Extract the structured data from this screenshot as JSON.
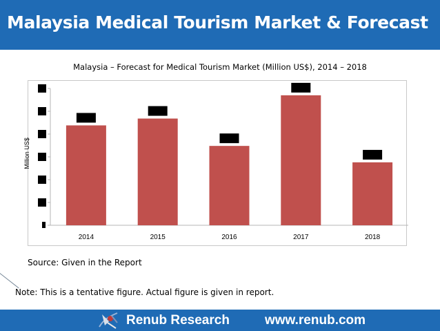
{
  "header": {
    "title": "Malaysia Medical Tourism Market & Forecast"
  },
  "chart_data": {
    "type": "bar",
    "title": "Malaysia – Forecast for Medical Tourism Market (Million US$), 2014 – 2018",
    "xlabel": "",
    "ylabel": "Million US$",
    "categories": [
      "2014",
      "2015",
      "2016",
      "2017",
      "2018"
    ],
    "values": [
      73,
      78,
      58,
      95,
      46
    ],
    "ylim": [
      0,
      100
    ],
    "grid": false,
    "legend": "none",
    "bar_color": "#c0504d",
    "hidden_labels": true
  },
  "source_text": "Source: Given in the Report",
  "note_text": "Note: This is a tentative figure. Actual figure is given in report.",
  "footer": {
    "brand": "Renub Research",
    "url": "www.renub.com",
    "logo_icon": "renub-logo-icon"
  },
  "colors": {
    "brand_blue": "#1f6bb5",
    "bar": "#c0504d"
  }
}
